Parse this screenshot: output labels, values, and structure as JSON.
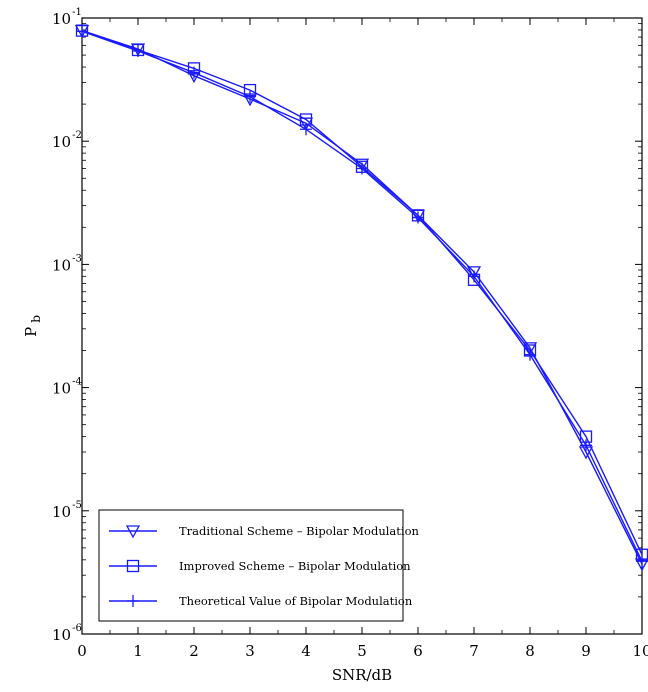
{
  "chart_data": {
    "type": "line",
    "xlabel": "SNR/dB",
    "ylabel": "P",
    "ylabel_sub": "b",
    "x": [
      0,
      1,
      2,
      3,
      4,
      5,
      6,
      7,
      8,
      9,
      10
    ],
    "xlim": [
      0,
      10
    ],
    "xticks": [
      "0",
      "1",
      "2",
      "3",
      "4",
      "5",
      "6",
      "7",
      "8",
      "9",
      "10"
    ],
    "yscale": "log",
    "ylim": [
      1e-06,
      0.1
    ],
    "yticks": [
      {
        "base": "10",
        "exp": "-1",
        "value": 0.1
      },
      {
        "base": "10",
        "exp": "-2",
        "value": 0.01
      },
      {
        "base": "10",
        "exp": "-3",
        "value": 0.001
      },
      {
        "base": "10",
        "exp": "-4",
        "value": 0.0001
      },
      {
        "base": "10",
        "exp": "-5",
        "value": 1e-05
      },
      {
        "base": "10",
        "exp": "-6",
        "value": 1e-06
      }
    ],
    "series": [
      {
        "name": "Traditional Scheme – Bipolar Modulation",
        "marker": "triangle-down",
        "color": "#1a1aff",
        "values": [
          0.079,
          0.056,
          0.034,
          0.022,
          0.014,
          0.0065,
          0.0025,
          0.00087,
          0.00021,
          3e-05,
          3.7e-06
        ]
      },
      {
        "name": "Improved Scheme – Bipolar Modulation",
        "marker": "square",
        "color": "#1a1aff",
        "values": [
          0.079,
          0.055,
          0.039,
          0.026,
          0.015,
          0.0062,
          0.0025,
          0.00075,
          0.0002,
          4e-05,
          4.4e-06
        ]
      },
      {
        "name": "Theoretical Value of Bipolar Modulation",
        "marker": "plus",
        "color": "#1a1aff",
        "values": [
          0.078,
          0.054,
          0.036,
          0.023,
          0.0125,
          0.006,
          0.0024,
          0.0008,
          0.000185,
          3.4e-05,
          3.9e-06
        ]
      }
    ],
    "legend_position": "bottom-left",
    "grid": false
  }
}
